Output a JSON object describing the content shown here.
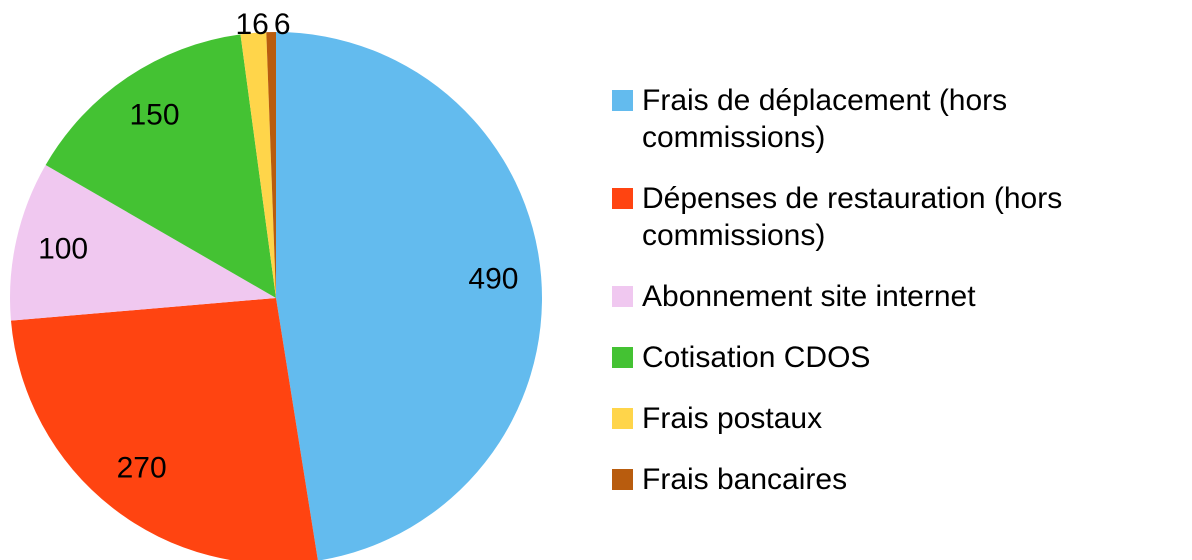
{
  "chart_data": {
    "type": "pie",
    "categories": [
      "Frais de déplacement (hors commissions)",
      "Dépenses de restauration (hors commissions)",
      "Abonnement site internet",
      "Cotisation CDOS",
      "Frais postaux",
      "Frais bancaires"
    ],
    "values": [
      490,
      270,
      100,
      150,
      16,
      6
    ],
    "colors": [
      "#63bbee",
      "#ff4411",
      "#f0c8f0",
      "#44c233",
      "#ffd54a",
      "#b85c0e"
    ],
    "legend": "right"
  }
}
